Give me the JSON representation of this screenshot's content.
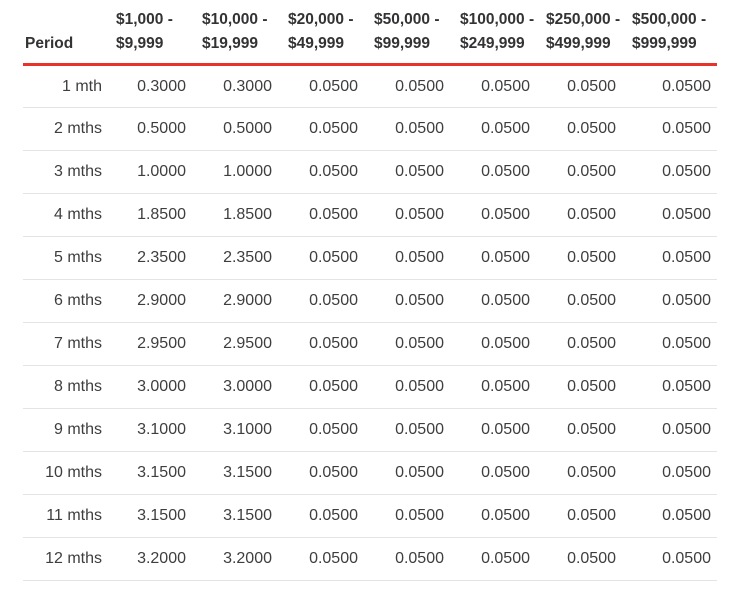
{
  "theme": {
    "accent_red": "#e8332a",
    "divider_color": "#e4e4e4",
    "text_color": "#3e3e40",
    "header_text_color": "#333335",
    "background": "#ffffff"
  },
  "rate_table": {
    "period_header": "Period",
    "columns": [
      "$1,000 -\n$9,999",
      "$10,000 -\n$19,999",
      "$20,000 -\n$49,999",
      "$50,000 -\n$99,999",
      "$100,000 -\n$249,999",
      "$250,000 -\n$499,999",
      "$500,000 -\n$999,999"
    ],
    "rows": [
      {
        "period": "1 mth",
        "values": [
          "0.3000",
          "0.3000",
          "0.0500",
          "0.0500",
          "0.0500",
          "0.0500",
          "0.0500"
        ]
      },
      {
        "period": "2 mths",
        "values": [
          "0.5000",
          "0.5000",
          "0.0500",
          "0.0500",
          "0.0500",
          "0.0500",
          "0.0500"
        ]
      },
      {
        "period": "3 mths",
        "values": [
          "1.0000",
          "1.0000",
          "0.0500",
          "0.0500",
          "0.0500",
          "0.0500",
          "0.0500"
        ]
      },
      {
        "period": "4 mths",
        "values": [
          "1.8500",
          "1.8500",
          "0.0500",
          "0.0500",
          "0.0500",
          "0.0500",
          "0.0500"
        ]
      },
      {
        "period": "5 mths",
        "values": [
          "2.3500",
          "2.3500",
          "0.0500",
          "0.0500",
          "0.0500",
          "0.0500",
          "0.0500"
        ]
      },
      {
        "period": "6 mths",
        "values": [
          "2.9000",
          "2.9000",
          "0.0500",
          "0.0500",
          "0.0500",
          "0.0500",
          "0.0500"
        ]
      },
      {
        "period": "7 mths",
        "values": [
          "2.9500",
          "2.9500",
          "0.0500",
          "0.0500",
          "0.0500",
          "0.0500",
          "0.0500"
        ]
      },
      {
        "period": "8 mths",
        "values": [
          "3.0000",
          "3.0000",
          "0.0500",
          "0.0500",
          "0.0500",
          "0.0500",
          "0.0500"
        ]
      },
      {
        "period": "9 mths",
        "values": [
          "3.1000",
          "3.1000",
          "0.0500",
          "0.0500",
          "0.0500",
          "0.0500",
          "0.0500"
        ]
      },
      {
        "period": "10 mths",
        "values": [
          "3.1500",
          "3.1500",
          "0.0500",
          "0.0500",
          "0.0500",
          "0.0500",
          "0.0500"
        ]
      },
      {
        "period": "11 mths",
        "values": [
          "3.1500",
          "3.1500",
          "0.0500",
          "0.0500",
          "0.0500",
          "0.0500",
          "0.0500"
        ]
      },
      {
        "period": "12 mths",
        "values": [
          "3.2000",
          "3.2000",
          "0.0500",
          "0.0500",
          "0.0500",
          "0.0500",
          "0.0500"
        ]
      }
    ]
  },
  "chart_data": {
    "type": "table",
    "title": "",
    "columns": [
      "Period",
      "$1,000 - $9,999",
      "$10,000 - $19,999",
      "$20,000 - $49,999",
      "$50,000 - $99,999",
      "$100,000 - $249,999",
      "$250,000 - $499,999",
      "$500,000 - $999,999"
    ],
    "rows": [
      [
        "1 mth",
        0.3,
        0.3,
        0.05,
        0.05,
        0.05,
        0.05,
        0.05
      ],
      [
        "2 mths",
        0.5,
        0.5,
        0.05,
        0.05,
        0.05,
        0.05,
        0.05
      ],
      [
        "3 mths",
        1.0,
        1.0,
        0.05,
        0.05,
        0.05,
        0.05,
        0.05
      ],
      [
        "4 mths",
        1.85,
        1.85,
        0.05,
        0.05,
        0.05,
        0.05,
        0.05
      ],
      [
        "5 mths",
        2.35,
        2.35,
        0.05,
        0.05,
        0.05,
        0.05,
        0.05
      ],
      [
        "6 mths",
        2.9,
        2.9,
        0.05,
        0.05,
        0.05,
        0.05,
        0.05
      ],
      [
        "7 mths",
        2.95,
        2.95,
        0.05,
        0.05,
        0.05,
        0.05,
        0.05
      ],
      [
        "8 mths",
        3.0,
        3.0,
        0.05,
        0.05,
        0.05,
        0.05,
        0.05
      ],
      [
        "9 mths",
        3.1,
        3.1,
        0.05,
        0.05,
        0.05,
        0.05,
        0.05
      ],
      [
        "10 mths",
        3.15,
        3.15,
        0.05,
        0.05,
        0.05,
        0.05,
        0.05
      ],
      [
        "11 mths",
        3.15,
        3.15,
        0.05,
        0.05,
        0.05,
        0.05,
        0.05
      ],
      [
        "12 mths",
        3.2,
        3.2,
        0.05,
        0.05,
        0.05,
        0.05,
        0.05
      ]
    ],
    "value_display_decimals": 4,
    "grid": "horizontal-dividers",
    "header_rule_color": "#e8332a"
  }
}
